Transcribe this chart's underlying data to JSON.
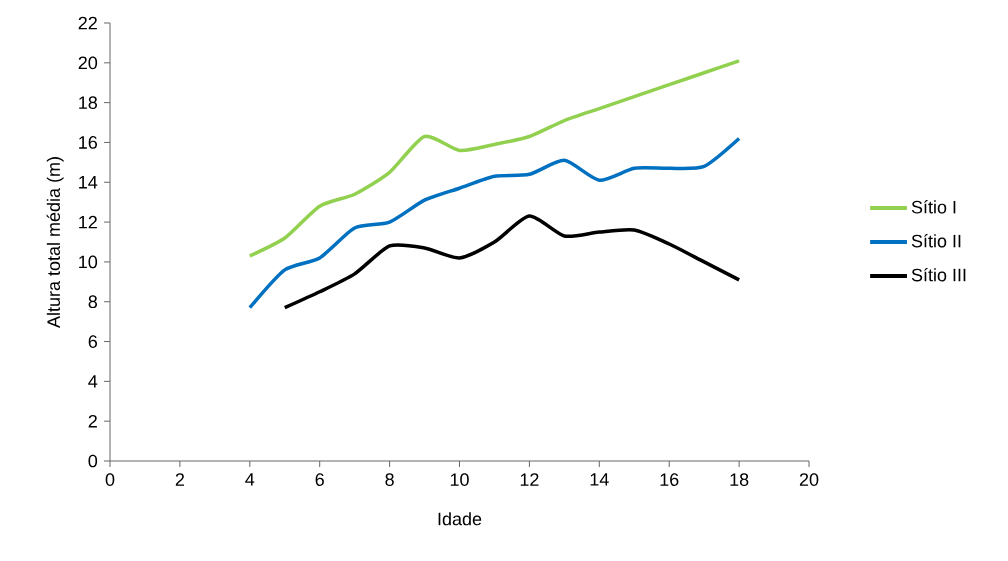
{
  "chart_data": {
    "type": "line",
    "xlabel": "Idade",
    "ylabel": "Altura total média (m)",
    "xlim": [
      0,
      20
    ],
    "xticks": [
      0,
      2,
      4,
      6,
      8,
      10,
      12,
      14,
      16,
      18,
      20
    ],
    "ylim": [
      0,
      22
    ],
    "yticks": [
      0,
      2,
      4,
      6,
      8,
      10,
      12,
      14,
      16,
      18,
      20,
      22
    ],
    "grid": false,
    "legend": "right",
    "marker": "none",
    "line_style": "solid",
    "series": [
      {
        "name": "Sítio I",
        "color": "#92d050",
        "x": [
          4,
          5,
          6,
          7,
          8,
          9,
          10,
          11,
          12,
          13,
          14,
          15,
          16,
          17,
          18
        ],
        "values": [
          10.3,
          11.2,
          12.8,
          13.4,
          14.5,
          16.3,
          15.6,
          15.9,
          16.3,
          17.1,
          17.7,
          18.3,
          18.9,
          19.5,
          20.1
        ]
      },
      {
        "name": "Sítio II",
        "color": "#0070c0",
        "x": [
          4,
          5,
          6,
          7,
          8,
          9,
          10,
          11,
          12,
          13,
          14,
          15,
          16,
          17,
          18
        ],
        "values": [
          7.7,
          9.6,
          10.2,
          11.7,
          12.0,
          13.1,
          13.7,
          14.3,
          14.4,
          15.1,
          14.1,
          14.7,
          14.7,
          14.8,
          16.2
        ]
      },
      {
        "name": "Sítio III",
        "color": "#000000",
        "x": [
          5,
          6,
          7,
          8,
          9,
          10,
          11,
          12,
          13,
          14,
          15,
          16,
          17,
          18
        ],
        "values": [
          7.7,
          8.5,
          9.4,
          10.8,
          10.7,
          10.2,
          11.0,
          12.3,
          11.3,
          11.5,
          11.6,
          10.9,
          10.0,
          9.1
        ]
      }
    ]
  }
}
